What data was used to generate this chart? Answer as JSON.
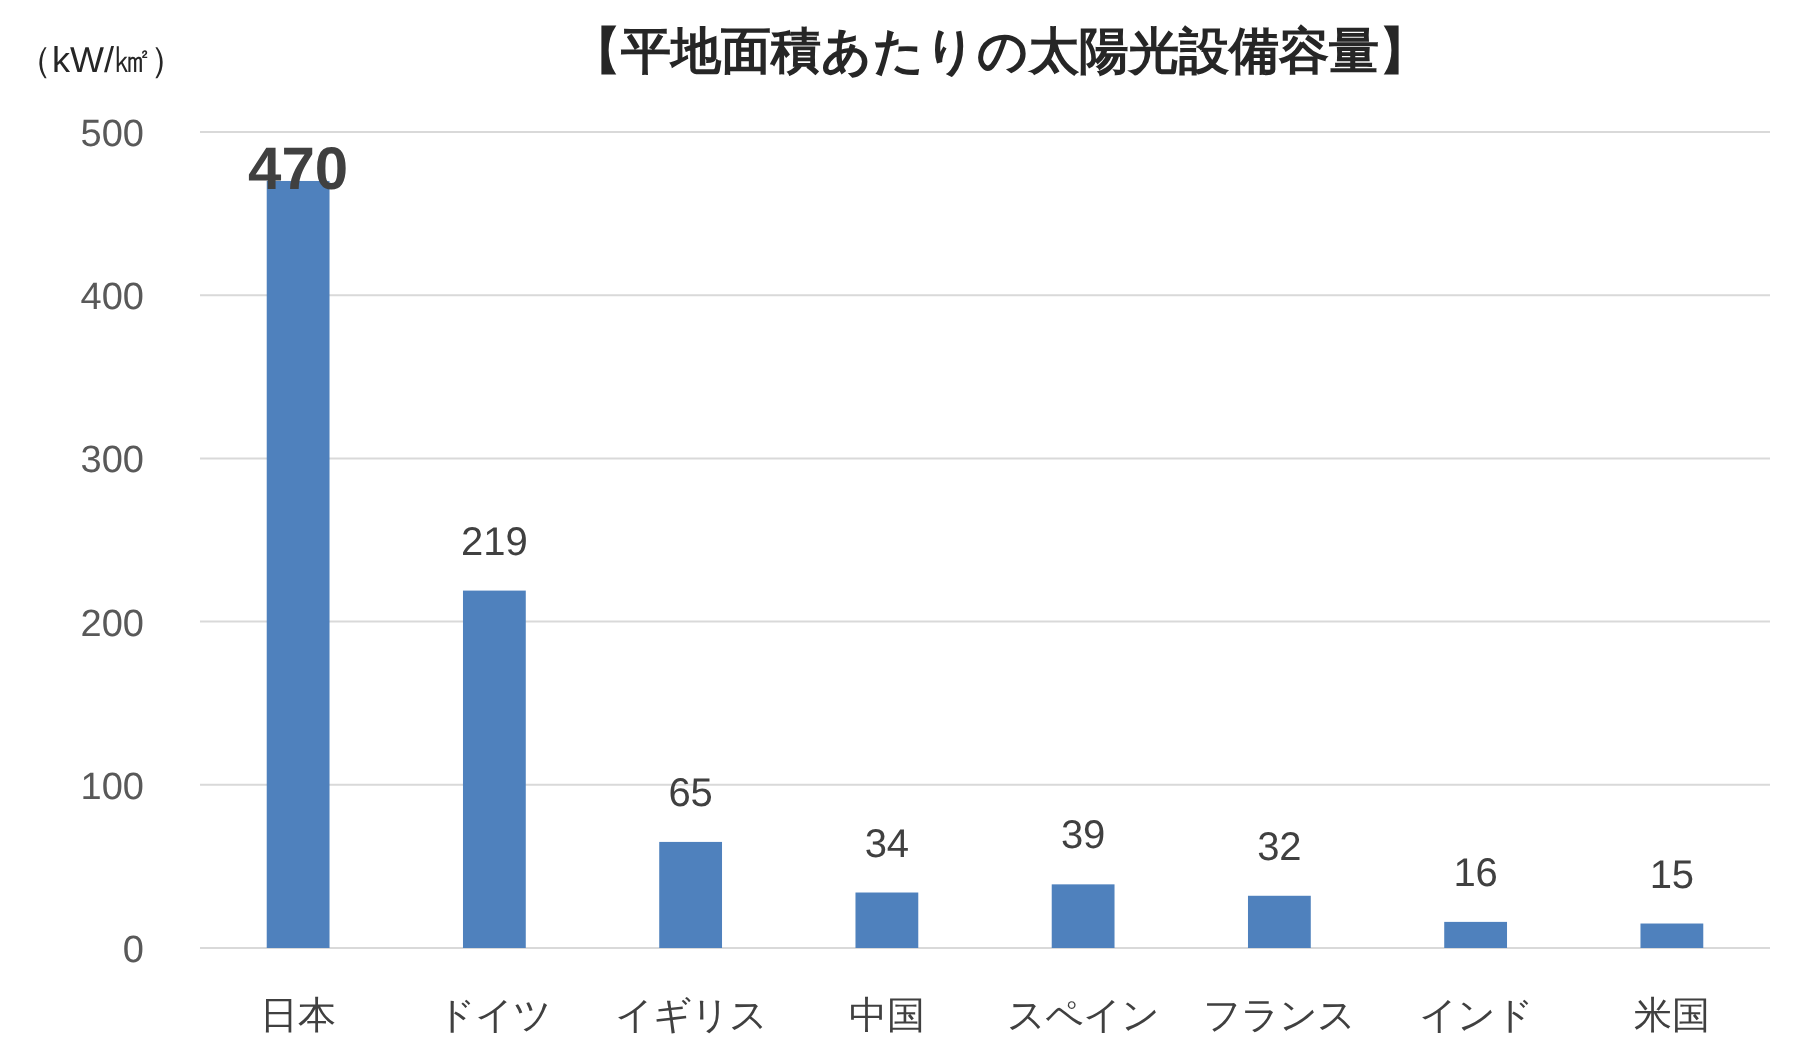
{
  "chart_data": {
    "type": "bar",
    "title": "【平地面積あたりの太陽光設備容量】",
    "ylabel": "（kW/㎢）",
    "categories": [
      "日本",
      "ドイツ",
      "イギリス",
      "中国",
      "スペイン",
      "フランス",
      "インド",
      "米国"
    ],
    "values": [
      470,
      219,
      65,
      34,
      39,
      32,
      16,
      15
    ],
    "color": "#4f81bd",
    "ylim": [
      0,
      500
    ],
    "yticks": [
      0,
      100,
      200,
      300,
      400,
      500
    ],
    "grid": "y",
    "data_labels": true
  }
}
